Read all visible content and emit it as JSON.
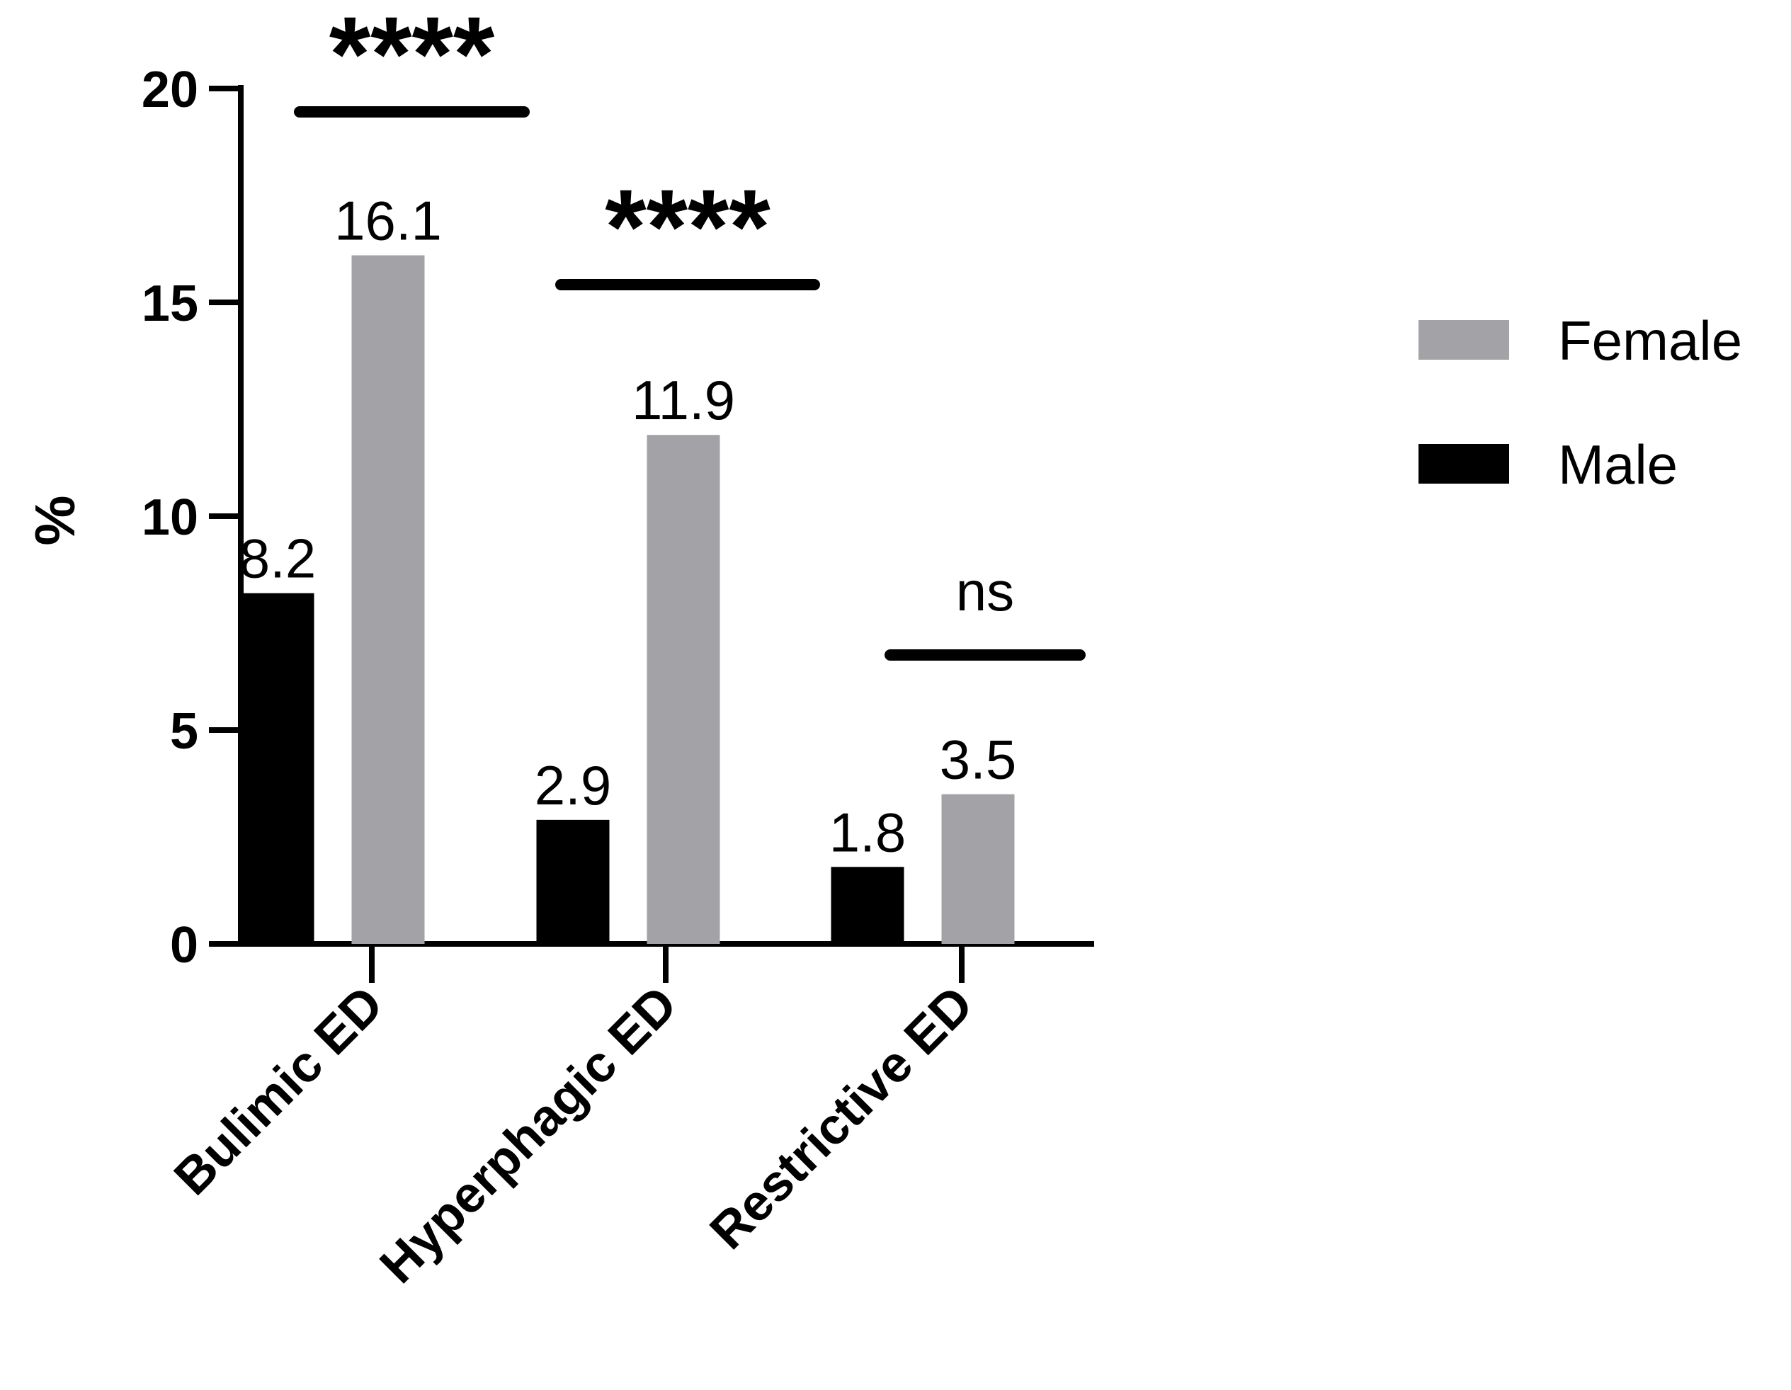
{
  "chart_data": {
    "type": "bar",
    "categories": [
      "Bulimic ED",
      "Hyperphagic ED",
      "Restrictive ED"
    ],
    "series": [
      {
        "name": "Male",
        "values": [
          8.2,
          2.9,
          1.8
        ],
        "labels": [
          "8.2",
          "2.9",
          "1.8"
        ],
        "color": "#000000"
      },
      {
        "name": "Female",
        "values": [
          16.1,
          11.9,
          3.5
        ],
        "labels": [
          "16.1",
          "11.9",
          "3.5"
        ],
        "color": "#a3a2a6"
      }
    ],
    "bar_heights_note_free": true,
    "ylabel": "%",
    "xlabel": "",
    "ylim": [
      0,
      20
    ],
    "yticks": [
      "0",
      "5",
      "10",
      "15",
      "20"
    ],
    "significance": [
      "****",
      "****",
      "ns"
    ],
    "legend": {
      "position": "right",
      "entries": [
        "Female",
        "Male"
      ]
    },
    "grid": false
  }
}
